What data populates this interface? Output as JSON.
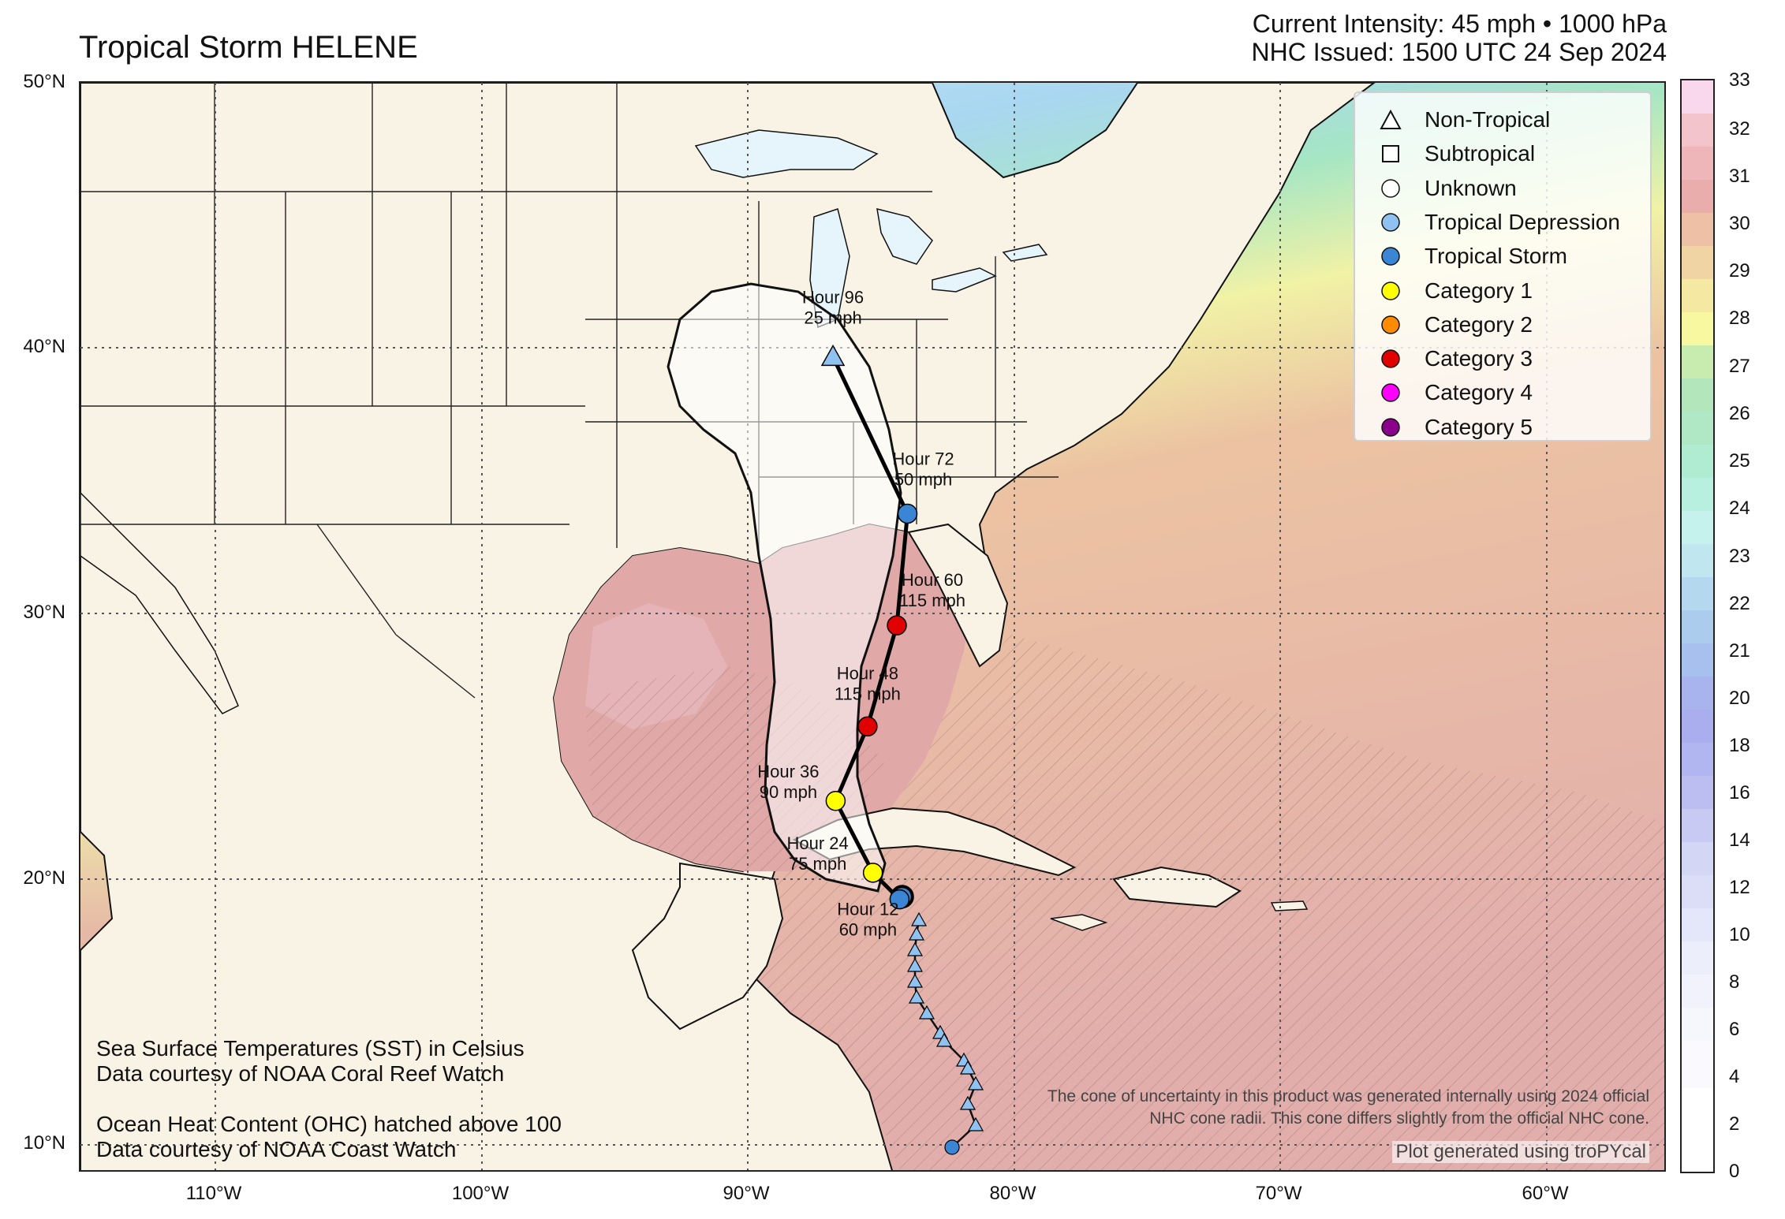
{
  "title": "Tropical Storm HELENE",
  "header": {
    "intensity": "Current Intensity: 45 mph • 1000 hPa",
    "issued": "NHC Issued: 1500 UTC 24 Sep 2024"
  },
  "axes": {
    "lat_labels": [
      "50°N",
      "40°N",
      "30°N",
      "20°N",
      "10°N"
    ],
    "lon_labels": [
      "110°W",
      "100°W",
      "90°W",
      "80°W",
      "70°W",
      "60°W"
    ]
  },
  "colorbar": {
    "ticks": [
      "33",
      "32",
      "31",
      "30",
      "29",
      "28",
      "27",
      "26",
      "25",
      "24",
      "23",
      "22",
      "21",
      "20",
      "18",
      "16",
      "14",
      "12",
      "10",
      "8",
      "6",
      "4",
      "2",
      "0"
    ]
  },
  "legend": {
    "items": [
      {
        "label": "Non-Tropical",
        "shape": "triangle",
        "color": "#ffffff"
      },
      {
        "label": "Subtropical",
        "shape": "square",
        "color": "#ffffff"
      },
      {
        "label": "Unknown",
        "shape": "circle",
        "color": "#ffffff"
      },
      {
        "label": "Tropical Depression",
        "shape": "circle",
        "color": "#8fc2f0"
      },
      {
        "label": "Tropical Storm",
        "shape": "circle",
        "color": "#3a86d4"
      },
      {
        "label": "Category 1",
        "shape": "circle",
        "color": "#ffff00"
      },
      {
        "label": "Category 2",
        "shape": "circle",
        "color": "#ff8c00"
      },
      {
        "label": "Category 3",
        "shape": "circle",
        "color": "#e00000"
      },
      {
        "label": "Category 4",
        "shape": "circle",
        "color": "#ff00ff"
      },
      {
        "label": "Category 5",
        "shape": "circle",
        "color": "#8b008b"
      }
    ]
  },
  "forecast": [
    {
      "hour": "Hour 12",
      "wind": "60 mph",
      "lat": 19.3,
      "lon": -84.3
    },
    {
      "hour": "Hour 24",
      "wind": "75 mph",
      "lat": 20.3,
      "lon": -85.3
    },
    {
      "hour": "Hour 36",
      "wind": "90 mph",
      "lat": 23.0,
      "lon": -86.7
    },
    {
      "hour": "Hour 48",
      "wind": "115 mph",
      "lat": 25.8,
      "lon": -85.5
    },
    {
      "hour": "Hour 60",
      "wind": "115 mph",
      "lat": 29.6,
      "lon": -84.4
    },
    {
      "hour": "Hour 72",
      "wind": "50 mph",
      "lat": 33.8,
      "lon": -84.0
    },
    {
      "hour": "Hour 96",
      "wind": "25 mph",
      "lat": 39.7,
      "lon": -86.8
    }
  ],
  "notes": {
    "sst_line1": "Sea Surface Temperatures (SST) in Celsius",
    "sst_line2": "Data courtesy of NOAA Coral Reef Watch",
    "ohc_line1": "Ocean Heat Content (OHC) hatched above 100",
    "ohc_line2": "Data courtesy of NOAA Coast Watch",
    "disclaimer_line1": "The cone of uncertainty in this product was generated internally using 2024 official",
    "disclaimer_line2": "NHC cone radii. This cone differs slightly from the official NHC cone.",
    "credit": "Plot generated using troPYcal"
  },
  "colors": {
    "land": "#f9f3e6",
    "warm_sea": "#e2aeac",
    "cat1": "#ffff00",
    "cat3": "#e00000",
    "tropical_storm": "#3a86d4",
    "tropical_depression": "#8fc2f0"
  }
}
